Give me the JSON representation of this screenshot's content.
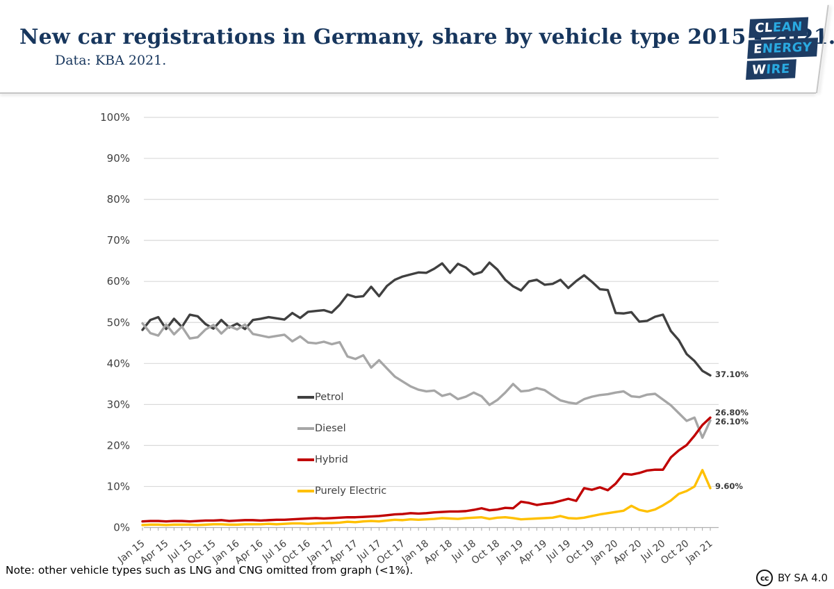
{
  "header": {
    "title": "New car registrations in Germany, share by vehicle type 2015 - 2021.",
    "subtitle": "Data: KBA 2021.",
    "logo": {
      "name": "Clean Energy Wire",
      "bg_color": "#1e3c63",
      "accent_color": "#2aa9e0",
      "rows": [
        {
          "white": "CL",
          "blue": "EAN"
        },
        {
          "white": "E",
          "blue": "NERGY"
        },
        {
          "white": "W",
          "blue": "IRE"
        }
      ]
    }
  },
  "chart_data": {
    "type": "line",
    "title": "New car registrations in Germany, share by vehicle type 2015 - 2021.",
    "x_unit": "month",
    "x_range": "Jan 2015 - Jan 2021",
    "n_points": 73,
    "points_per_tick": 3,
    "x_tick_labels": [
      "Jan 15",
      "Apr 15",
      "Jul 15",
      "Oct 15",
      "Jan 16",
      "Apr 16",
      "Jul 16",
      "Oct 16",
      "Jan 17",
      "Apr 17",
      "Jul 17",
      "Oct 17",
      "Jan 18",
      "Apr 18",
      "Jul 18",
      "Oct 18",
      "Jan 19",
      "Apr 19",
      "Jul 19",
      "Oct 19",
      "Jan 20",
      "Apr 20",
      "Jul 20",
      "Oct 20",
      "Jan 21"
    ],
    "y_ticks": [
      "0%",
      "10%",
      "20%",
      "30%",
      "40%",
      "50%",
      "60%",
      "70%",
      "80%",
      "90%",
      "100%"
    ],
    "ylim": [
      0,
      100
    ],
    "grid": true,
    "legend_position": "inside-middle-left",
    "series": [
      {
        "name": "Petrol",
        "color": "#404040",
        "values": [
          48.2,
          50.6,
          51.3,
          48.4,
          50.9,
          48.9,
          51.9,
          51.5,
          49.6,
          48.5,
          50.6,
          48.8,
          49.7,
          48.4,
          50.6,
          50.9,
          51.3,
          51.0,
          50.7,
          52.3,
          51.1,
          52.6,
          52.8,
          53.0,
          52.4,
          54.3,
          56.8,
          56.2,
          56.4,
          58.7,
          56.4,
          58.9,
          60.4,
          61.2,
          61.7,
          62.2,
          62.1,
          63.1,
          64.4,
          62.1,
          64.3,
          63.4,
          61.7,
          62.3,
          64.6,
          62.9,
          60.4,
          58.8,
          57.8,
          60.0,
          60.4,
          59.2,
          59.4,
          60.4,
          58.4,
          60.1,
          61.5,
          59.9,
          58.1,
          57.9,
          52.3,
          52.2,
          52.5,
          50.2,
          50.4,
          51.4,
          51.9,
          47.9,
          45.7,
          42.3,
          40.6,
          38.2,
          37.1
        ]
      },
      {
        "name": "Diesel",
        "color": "#a6a6a6",
        "values": [
          49.8,
          47.4,
          46.8,
          49.5,
          47.1,
          49.0,
          46.1,
          46.4,
          48.3,
          49.4,
          47.3,
          49.1,
          48.3,
          49.5,
          47.2,
          46.8,
          46.4,
          46.7,
          47.0,
          45.4,
          46.6,
          45.1,
          44.9,
          45.3,
          44.7,
          45.2,
          41.7,
          41.1,
          42.0,
          39.0,
          40.8,
          38.8,
          36.8,
          35.6,
          34.4,
          33.6,
          33.2,
          33.4,
          32.1,
          32.6,
          31.3,
          31.9,
          32.9,
          32.0,
          29.9,
          31.1,
          32.9,
          35.0,
          33.2,
          33.4,
          34.0,
          33.5,
          32.2,
          31.0,
          30.5,
          30.2,
          31.3,
          31.9,
          32.3,
          32.5,
          32.9,
          33.2,
          32.0,
          31.8,
          32.4,
          32.6,
          31.2,
          29.8,
          27.9,
          26.0,
          26.8,
          21.9,
          26.1
        ]
      },
      {
        "name": "Hybrid",
        "color": "#c00000",
        "values": [
          1.5,
          1.6,
          1.6,
          1.5,
          1.6,
          1.6,
          1.5,
          1.6,
          1.7,
          1.7,
          1.8,
          1.6,
          1.7,
          1.8,
          1.8,
          1.7,
          1.8,
          1.9,
          1.9,
          2.0,
          2.1,
          2.2,
          2.3,
          2.2,
          2.3,
          2.4,
          2.5,
          2.5,
          2.6,
          2.7,
          2.8,
          3.0,
          3.2,
          3.3,
          3.5,
          3.4,
          3.5,
          3.7,
          3.8,
          3.9,
          3.9,
          4.0,
          4.3,
          4.7,
          4.2,
          4.4,
          4.8,
          4.7,
          6.3,
          6.0,
          5.5,
          5.8,
          6.0,
          6.5,
          7.0,
          6.5,
          9.6,
          9.2,
          9.8,
          9.1,
          10.7,
          13.1,
          12.9,
          13.3,
          13.9,
          14.1,
          14.1,
          17.1,
          18.8,
          20.1,
          22.4,
          25.0,
          26.8
        ]
      },
      {
        "name": "Purely Electric",
        "color": "#ffc000",
        "values": [
          0.6,
          0.7,
          0.7,
          0.6,
          0.7,
          0.7,
          0.7,
          0.6,
          0.7,
          0.8,
          0.8,
          0.7,
          0.7,
          0.8,
          0.8,
          0.8,
          0.9,
          0.8,
          0.9,
          1.0,
          1.0,
          0.9,
          1.0,
          1.1,
          1.1,
          1.2,
          1.4,
          1.3,
          1.5,
          1.6,
          1.5,
          1.7,
          1.9,
          1.8,
          2.0,
          1.9,
          2.0,
          2.1,
          2.3,
          2.2,
          2.1,
          2.3,
          2.4,
          2.5,
          2.1,
          2.4,
          2.5,
          2.3,
          2.0,
          2.1,
          2.2,
          2.3,
          2.4,
          2.8,
          2.3,
          2.2,
          2.4,
          2.8,
          3.2,
          3.5,
          3.8,
          4.1,
          5.3,
          4.3,
          3.9,
          4.4,
          5.4,
          6.6,
          8.2,
          8.9,
          10.0,
          14.0,
          9.6
        ]
      }
    ],
    "end_labels": [
      {
        "series": "Petrol",
        "text": "37.10%"
      },
      {
        "series": "Hybrid",
        "text": "26.80%"
      },
      {
        "series": "Diesel",
        "text": "26.10%"
      },
      {
        "series": "Purely Electric",
        "text": "9.60%"
      }
    ]
  },
  "footer": {
    "note": "Note: other vehicle types such as LNG and CNG omitted from graph (<1%).",
    "cc_glyph": "cc",
    "license": "BY SA 4.0"
  }
}
